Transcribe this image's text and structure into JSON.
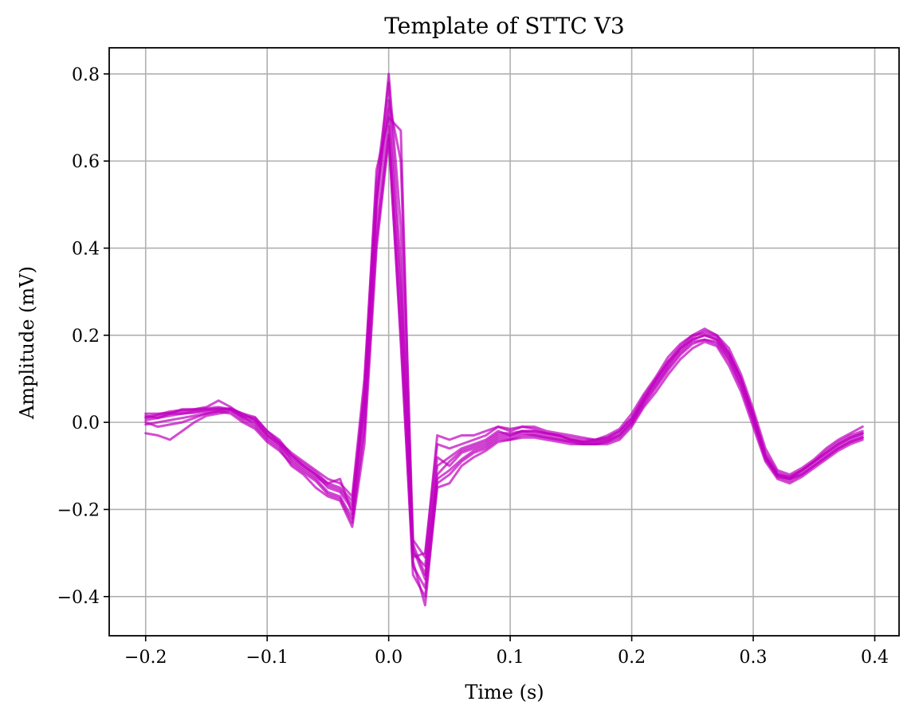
{
  "chart_data": {
    "type": "line",
    "title": "Template of STTC V3",
    "xlabel": "Time (s)",
    "ylabel": "Amplitude (mV)",
    "xlim": [
      -0.23,
      0.42
    ],
    "ylim": [
      -0.49,
      0.86
    ],
    "xticks": [
      -0.2,
      -0.1,
      0.0,
      0.1,
      0.2,
      0.3,
      0.4
    ],
    "xtick_labels": [
      "−0.2",
      "−0.1",
      "0.0",
      "0.1",
      "0.2",
      "0.3",
      "0.4"
    ],
    "yticks": [
      -0.4,
      -0.2,
      0.0,
      0.2,
      0.4,
      0.6,
      0.8
    ],
    "ytick_labels": [
      "−0.4",
      "−0.2",
      "0.0",
      "0.2",
      "0.4",
      "0.6",
      "0.8"
    ],
    "grid": true,
    "line_color": "#bf00bf",
    "line_opacity": 0.7,
    "x": [
      -0.2,
      -0.19,
      -0.18,
      -0.17,
      -0.16,
      -0.15,
      -0.14,
      -0.13,
      -0.12,
      -0.11,
      -0.1,
      -0.09,
      -0.08,
      -0.07,
      -0.06,
      -0.05,
      -0.04,
      -0.03,
      -0.02,
      -0.01,
      0.0,
      0.01,
      0.02,
      0.03,
      0.04,
      0.05,
      0.06,
      0.07,
      0.08,
      0.09,
      0.1,
      0.11,
      0.12,
      0.13,
      0.14,
      0.15,
      0.16,
      0.17,
      0.18,
      0.19,
      0.2,
      0.21,
      0.22,
      0.23,
      0.24,
      0.25,
      0.26,
      0.27,
      0.28,
      0.29,
      0.3,
      0.31,
      0.32,
      0.33,
      0.34,
      0.35,
      0.36,
      0.37,
      0.38,
      0.39
    ],
    "series": [
      {
        "values": [
          0.01,
          0.015,
          0.02,
          0.02,
          0.022,
          0.025,
          0.028,
          0.03,
          0.01,
          0.0,
          -0.03,
          -0.05,
          -0.08,
          -0.1,
          -0.12,
          -0.15,
          -0.16,
          -0.2,
          0.05,
          0.5,
          0.72,
          0.3,
          -0.28,
          -0.35,
          -0.1,
          -0.08,
          -0.06,
          -0.05,
          -0.04,
          -0.02,
          -0.03,
          -0.02,
          -0.02,
          -0.025,
          -0.03,
          -0.04,
          -0.045,
          -0.04,
          -0.035,
          -0.02,
          0.01,
          0.06,
          0.1,
          0.14,
          0.17,
          0.19,
          0.2,
          0.19,
          0.15,
          0.09,
          0.01,
          -0.08,
          -0.12,
          -0.13,
          -0.11,
          -0.09,
          -0.07,
          -0.05,
          -0.035,
          -0.025
        ]
      },
      {
        "values": [
          0.02,
          0.02,
          0.022,
          0.025,
          0.028,
          0.03,
          0.032,
          0.03,
          0.015,
          0.005,
          -0.025,
          -0.045,
          -0.07,
          -0.09,
          -0.11,
          -0.13,
          -0.14,
          -0.17,
          0.1,
          0.55,
          0.78,
          0.35,
          -0.3,
          -0.33,
          -0.08,
          -0.1,
          -0.07,
          -0.06,
          -0.05,
          -0.03,
          -0.03,
          -0.02,
          -0.025,
          -0.03,
          -0.035,
          -0.04,
          -0.045,
          -0.045,
          -0.04,
          -0.025,
          0.005,
          0.05,
          0.09,
          0.13,
          0.17,
          0.195,
          0.21,
          0.2,
          0.16,
          0.1,
          0.02,
          -0.07,
          -0.115,
          -0.125,
          -0.11,
          -0.09,
          -0.065,
          -0.045,
          -0.03,
          -0.02
        ]
      },
      {
        "values": [
          -0.005,
          0.0,
          0.005,
          0.01,
          0.015,
          0.02,
          0.025,
          0.028,
          0.012,
          -0.005,
          -0.035,
          -0.055,
          -0.09,
          -0.11,
          -0.13,
          -0.16,
          -0.17,
          -0.22,
          0.0,
          0.45,
          0.68,
          0.25,
          -0.32,
          -0.42,
          -0.14,
          -0.12,
          -0.09,
          -0.07,
          -0.06,
          -0.04,
          -0.04,
          -0.03,
          -0.03,
          -0.035,
          -0.04,
          -0.045,
          -0.05,
          -0.05,
          -0.045,
          -0.035,
          -0.005,
          0.04,
          0.08,
          0.12,
          0.155,
          0.18,
          0.19,
          0.18,
          0.14,
          0.08,
          0.0,
          -0.085,
          -0.125,
          -0.135,
          -0.12,
          -0.1,
          -0.08,
          -0.06,
          -0.045,
          -0.035
        ]
      },
      {
        "values": [
          0.015,
          0.01,
          0.02,
          0.03,
          0.03,
          0.035,
          0.05,
          0.035,
          0.015,
          0.01,
          -0.02,
          -0.04,
          -0.075,
          -0.095,
          -0.115,
          -0.14,
          -0.15,
          -0.18,
          0.08,
          0.58,
          0.7,
          0.67,
          -0.31,
          -0.3,
          -0.05,
          -0.06,
          -0.05,
          -0.04,
          -0.03,
          -0.01,
          -0.02,
          -0.01,
          -0.015,
          -0.025,
          -0.03,
          -0.035,
          -0.04,
          -0.04,
          -0.035,
          -0.02,
          0.01,
          0.055,
          0.095,
          0.135,
          0.165,
          0.19,
          0.2,
          0.19,
          0.155,
          0.1,
          0.015,
          -0.075,
          -0.12,
          -0.125,
          -0.11,
          -0.09,
          -0.07,
          -0.05,
          -0.035,
          -0.025
        ]
      },
      {
        "values": [
          -0.025,
          -0.03,
          -0.04,
          -0.02,
          0.0,
          0.015,
          0.02,
          0.025,
          0.005,
          -0.01,
          -0.04,
          -0.06,
          -0.1,
          -0.12,
          -0.15,
          -0.17,
          -0.18,
          -0.24,
          -0.05,
          0.4,
          0.65,
          0.2,
          -0.35,
          -0.4,
          -0.15,
          -0.14,
          -0.1,
          -0.08,
          -0.065,
          -0.045,
          -0.04,
          -0.035,
          -0.035,
          -0.04,
          -0.045,
          -0.05,
          -0.05,
          -0.05,
          -0.05,
          -0.04,
          -0.01,
          0.035,
          0.07,
          0.11,
          0.145,
          0.17,
          0.185,
          0.175,
          0.13,
          0.07,
          -0.01,
          -0.09,
          -0.13,
          -0.14,
          -0.125,
          -0.105,
          -0.085,
          -0.065,
          -0.05,
          -0.04
        ]
      },
      {
        "values": [
          0.005,
          0.01,
          0.015,
          0.02,
          0.025,
          0.028,
          0.03,
          0.032,
          0.02,
          0.005,
          -0.03,
          -0.05,
          -0.085,
          -0.105,
          -0.125,
          -0.145,
          -0.155,
          -0.19,
          0.03,
          0.5,
          0.8,
          0.45,
          -0.29,
          -0.36,
          -0.12,
          -0.09,
          -0.065,
          -0.055,
          -0.045,
          -0.025,
          -0.025,
          -0.02,
          -0.02,
          -0.025,
          -0.03,
          -0.04,
          -0.045,
          -0.045,
          -0.04,
          -0.03,
          0.0,
          0.05,
          0.1,
          0.14,
          0.175,
          0.2,
          0.205,
          0.195,
          0.16,
          0.1,
          0.02,
          -0.08,
          -0.12,
          -0.13,
          -0.115,
          -0.095,
          -0.075,
          -0.055,
          -0.04,
          -0.03
        ]
      },
      {
        "values": [
          0.012,
          0.018,
          0.025,
          0.028,
          0.03,
          0.032,
          0.035,
          0.03,
          0.02,
          0.012,
          -0.02,
          -0.045,
          -0.075,
          -0.1,
          -0.12,
          -0.14,
          -0.13,
          -0.21,
          0.06,
          0.52,
          0.74,
          0.6,
          -0.27,
          -0.31,
          -0.03,
          -0.04,
          -0.03,
          -0.03,
          -0.02,
          -0.01,
          -0.015,
          -0.01,
          -0.01,
          -0.02,
          -0.025,
          -0.03,
          -0.035,
          -0.04,
          -0.03,
          -0.015,
          0.02,
          0.065,
          0.105,
          0.15,
          0.18,
          0.2,
          0.215,
          0.2,
          0.17,
          0.11,
          0.03,
          -0.06,
          -0.11,
          -0.12,
          -0.105,
          -0.085,
          -0.06,
          -0.04,
          -0.025,
          -0.01
        ]
      },
      {
        "values": [
          0.0,
          -0.01,
          -0.005,
          0.0,
          0.01,
          0.02,
          0.025,
          0.02,
          0.0,
          -0.015,
          -0.045,
          -0.065,
          -0.095,
          -0.115,
          -0.135,
          -0.165,
          -0.175,
          -0.23,
          -0.02,
          0.42,
          0.66,
          0.18,
          -0.33,
          -0.38,
          -0.13,
          -0.11,
          -0.085,
          -0.065,
          -0.055,
          -0.035,
          -0.035,
          -0.025,
          -0.03,
          -0.035,
          -0.04,
          -0.045,
          -0.05,
          -0.05,
          -0.045,
          -0.03,
          0.0,
          0.045,
          0.085,
          0.125,
          0.16,
          0.185,
          0.19,
          0.185,
          0.145,
          0.085,
          0.005,
          -0.08,
          -0.125,
          -0.13,
          -0.12,
          -0.1,
          -0.08,
          -0.06,
          -0.045,
          -0.035
        ]
      }
    ]
  }
}
